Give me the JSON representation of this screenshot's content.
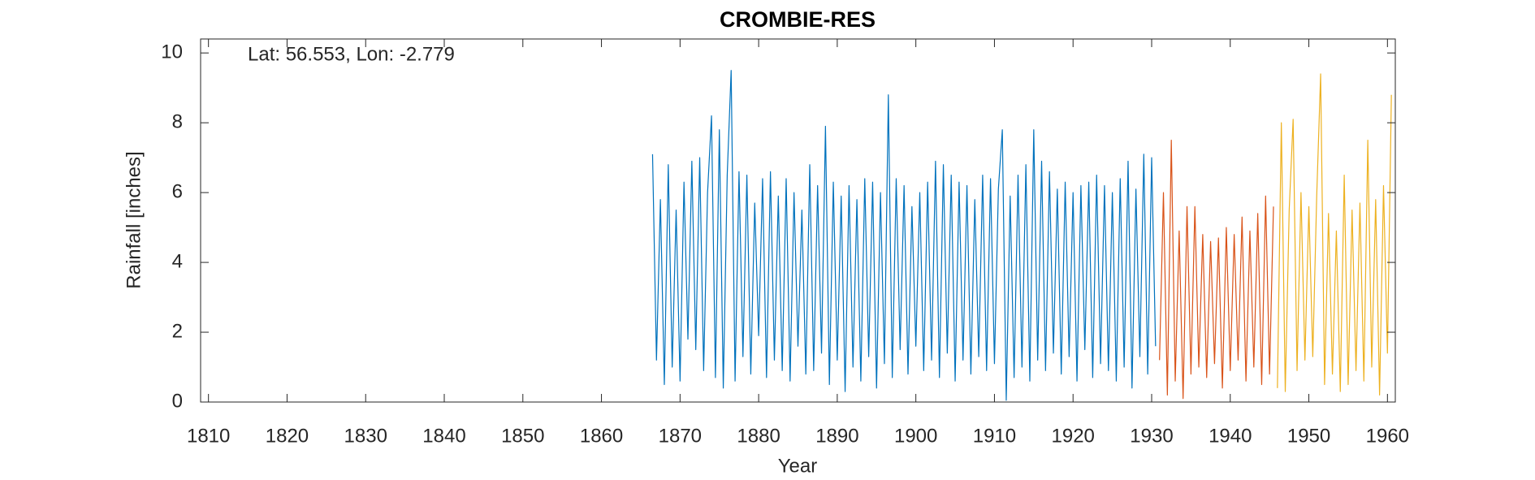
{
  "chart_data": {
    "type": "line",
    "title": "CROMBIE-RES",
    "annotation": "Lat: 56.553, Lon: -2.779",
    "x_label": "Year",
    "y_label": "Rainfall [inches]",
    "xlim": [
      1809,
      1961
    ],
    "xticks": [
      1810,
      1820,
      1830,
      1840,
      1850,
      1860,
      1870,
      1880,
      1890,
      1900,
      1910,
      1920,
      1930,
      1940,
      1950,
      1960
    ],
    "ylim": [
      0,
      10.4
    ],
    "yticks": [
      0,
      2,
      4,
      6,
      8,
      10
    ],
    "grid": false,
    "series": [
      {
        "color": "#0072BD",
        "x": [
          1866.5,
          1867,
          1867.5,
          1868,
          1868.5,
          1869,
          1869.5,
          1870,
          1870.5,
          1871,
          1871.5,
          1872,
          1872.5,
          1873,
          1873.5,
          1874,
          1874.5,
          1875,
          1875.5,
          1876,
          1876.5,
          1877,
          1877.5,
          1878,
          1878.5,
          1879,
          1879.5,
          1880,
          1880.5,
          1881,
          1881.5,
          1882,
          1882.5,
          1883,
          1883.5,
          1884,
          1884.5,
          1885,
          1885.5,
          1886,
          1886.5,
          1887,
          1887.5,
          1888,
          1888.5,
          1889,
          1889.5,
          1890,
          1890.5,
          1891,
          1891.5,
          1892,
          1892.5,
          1893,
          1893.5,
          1894,
          1894.5,
          1895,
          1895.5,
          1896,
          1896.5,
          1897,
          1897.5,
          1898,
          1898.5,
          1899,
          1899.5,
          1900,
          1900.5,
          1901,
          1901.5,
          1902,
          1902.5,
          1903,
          1903.5,
          1904,
          1904.5,
          1905,
          1905.5,
          1906,
          1906.5,
          1907,
          1907.5,
          1908,
          1908.5,
          1909,
          1909.5,
          1910,
          1910.5,
          1911,
          1911.5,
          1912,
          1912.5,
          1913,
          1913.5,
          1914,
          1914.5,
          1915,
          1915.5,
          1916,
          1916.5,
          1917,
          1917.5,
          1918,
          1918.5,
          1919,
          1919.5,
          1920,
          1920.5,
          1921,
          1921.5,
          1922,
          1922.5,
          1923,
          1923.5,
          1924,
          1924.5,
          1925,
          1925.5,
          1926,
          1926.5,
          1927,
          1927.5,
          1928,
          1928.5,
          1929,
          1929.5,
          1930,
          1930.5
        ],
        "values": [
          7.1,
          1.2,
          5.8,
          0.5,
          6.8,
          1.0,
          5.5,
          0.6,
          6.3,
          1.8,
          6.9,
          1.5,
          7.0,
          0.9,
          6.0,
          8.2,
          0.7,
          7.8,
          0.4,
          6.5,
          9.5,
          0.6,
          6.6,
          1.3,
          6.5,
          0.8,
          5.7,
          1.9,
          6.4,
          0.7,
          6.6,
          1.2,
          5.9,
          0.9,
          6.4,
          0.6,
          6.0,
          1.6,
          5.5,
          0.8,
          6.8,
          0.9,
          6.2,
          1.4,
          7.9,
          0.5,
          6.3,
          1.2,
          5.9,
          0.3,
          6.2,
          1.0,
          5.8,
          0.6,
          6.4,
          1.3,
          6.3,
          0.4,
          6.0,
          1.1,
          8.8,
          0.7,
          6.4,
          1.5,
          6.2,
          0.8,
          5.6,
          1.6,
          6.0,
          0.9,
          6.3,
          1.2,
          6.9,
          0.7,
          6.8,
          1.4,
          6.5,
          0.6,
          6.3,
          1.2,
          6.2,
          0.8,
          5.8,
          1.3,
          6.5,
          0.9,
          6.4,
          1.1,
          6.1,
          7.8,
          0.05,
          5.9,
          0.7,
          6.5,
          1.0,
          6.8,
          0.6,
          7.8,
          1.2,
          6.9,
          0.9,
          6.6,
          1.4,
          6.1,
          0.8,
          6.3,
          1.3,
          6.0,
          0.6,
          6.2,
          1.5,
          6.3,
          0.7,
          6.5,
          1.1,
          6.2,
          0.9,
          6.0,
          0.6,
          6.4,
          1.0,
          6.9,
          0.4,
          6.1,
          1.3,
          7.1,
          0.8,
          7.0,
          1.6
        ]
      },
      {
        "color": "#D95319",
        "x": [
          1931,
          1931.5,
          1932,
          1932.5,
          1933,
          1933.5,
          1934,
          1934.5,
          1935,
          1935.5,
          1936,
          1936.5,
          1937,
          1937.5,
          1938,
          1938.5,
          1939,
          1939.5,
          1940,
          1940.5,
          1941,
          1941.5,
          1942,
          1942.5,
          1943,
          1943.5,
          1944,
          1944.5,
          1945,
          1945.5
        ],
        "values": [
          1.2,
          6.0,
          0.2,
          7.5,
          0.6,
          4.9,
          0.1,
          5.6,
          0.8,
          5.6,
          1.0,
          4.8,
          0.7,
          4.6,
          1.1,
          4.7,
          0.4,
          5.0,
          0.9,
          4.8,
          1.2,
          5.3,
          0.6,
          4.9,
          1.0,
          5.4,
          0.5,
          5.9,
          0.8,
          5.6
        ]
      },
      {
        "color": "#EDB120",
        "x": [
          1946,
          1946.5,
          1947,
          1947.5,
          1948,
          1948.5,
          1949,
          1949.5,
          1950,
          1950.5,
          1951,
          1951.5,
          1952,
          1952.5,
          1953,
          1953.5,
          1954,
          1954.5,
          1955,
          1955.5,
          1956,
          1956.5,
          1957,
          1957.5,
          1958,
          1958.5,
          1959,
          1959.5,
          1960,
          1960.5
        ],
        "values": [
          0.4,
          8.0,
          0.3,
          5.5,
          8.1,
          0.9,
          6.0,
          1.2,
          5.6,
          1.3,
          5.9,
          9.4,
          0.5,
          5.4,
          0.8,
          4.9,
          0.3,
          6.5,
          0.5,
          5.5,
          0.9,
          5.7,
          0.6,
          7.5,
          1.0,
          5.8,
          0.2,
          6.2,
          1.4,
          8.8
        ]
      }
    ]
  }
}
